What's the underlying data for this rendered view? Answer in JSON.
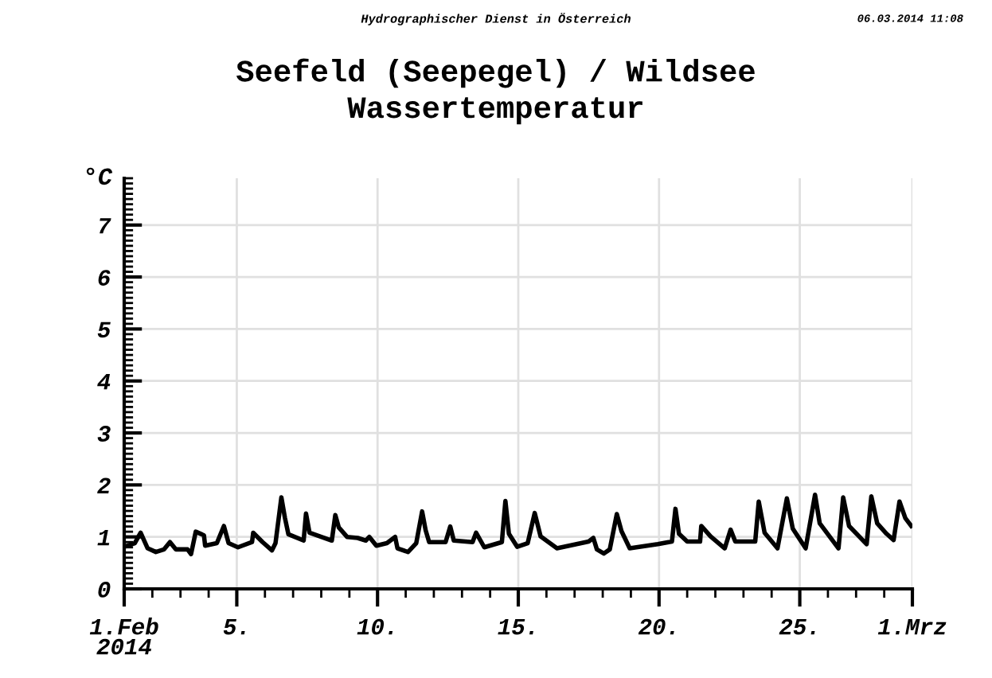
{
  "chart_data": {
    "type": "line",
    "title": "Seefeld (Seepegel) / Wildsee",
    "subtitle": "Wassertemperatur",
    "ylabel": "°C",
    "annotations": [
      "Hydrographischer Dienst in Österreich",
      "06.03.2014 11:08"
    ],
    "x": [
      "2014-02-01T00:00",
      "2014-02-01T09:00",
      "2014-02-01T14:00",
      "2014-02-01T20:00",
      "2014-02-02T03:00",
      "2014-02-02T10:00",
      "2014-02-02T15:00",
      "2014-02-02T20:00",
      "2014-02-03T06:00",
      "2014-02-03T09:00",
      "2014-02-03T13:00",
      "2014-02-03T20:00",
      "2014-02-03T21:00",
      "2014-02-04T07:00",
      "2014-02-04T13:00",
      "2014-02-04T17:00",
      "2014-02-05T01:00",
      "2014-02-05T13:00",
      "2014-02-05T14:00",
      "2014-02-05T22:00",
      "2014-02-06T06:00",
      "2014-02-06T09:00",
      "2014-02-06T14:00",
      "2014-02-06T17:00",
      "2014-02-06T20:00",
      "2014-02-07T09:00",
      "2014-02-07T11:00",
      "2014-02-07T14:00",
      "2014-02-08T09:00",
      "2014-02-08T12:00",
      "2014-02-08T15:00",
      "2014-02-08T22:00",
      "2014-02-09T07:00",
      "2014-02-09T14:00",
      "2014-02-09T17:00",
      "2014-02-09T23:00",
      "2014-02-10T08:00",
      "2014-02-10T15:00",
      "2014-02-10T17:00",
      "2014-02-11T02:00",
      "2014-02-11T09:00",
      "2014-02-11T14:00",
      "2014-02-11T17:00",
      "2014-02-11T20:00",
      "2014-02-12T10:00",
      "2014-02-12T14:00",
      "2014-02-12T17:00",
      "2014-02-13T09:00",
      "2014-02-13T12:00",
      "2014-02-13T19:00",
      "2014-02-14T10:00",
      "2014-02-14T13:00",
      "2014-02-14T16:00",
      "2014-02-14T23:00",
      "2014-02-15T08:00",
      "2014-02-15T14:00",
      "2014-02-15T19:00",
      "2014-02-16T09:00",
      "2014-02-17T12:00",
      "2014-02-17T16:00",
      "2014-02-17T19:00",
      "2014-02-18T01:00",
      "2014-02-18T06:00",
      "2014-02-18T12:00",
      "2014-02-18T16:00",
      "2014-02-18T23:00",
      "2014-02-19T23:00",
      "2014-02-20T11:00",
      "2014-02-20T14:00",
      "2014-02-20T17:00",
      "2014-02-21T00:00",
      "2014-02-21T11:00",
      "2014-02-21T12:00",
      "2014-02-21T20:00",
      "2014-02-22T08:00",
      "2014-02-22T13:00",
      "2014-02-22T17:00",
      "2014-02-23T10:00",
      "2014-02-23T13:00",
      "2014-02-23T18:00",
      "2014-02-24T05:00",
      "2014-02-24T13:00",
      "2014-02-24T18:00",
      "2014-02-25T05:00",
      "2014-02-25T13:00",
      "2014-02-25T17:00",
      "2014-02-26T09:00",
      "2014-02-26T13:00",
      "2014-02-26T18:00",
      "2014-02-27T09:00",
      "2014-02-27T13:00",
      "2014-02-27T18:00",
      "2014-02-28T02:00",
      "2014-02-28T08:00",
      "2014-02-28T13:00",
      "2014-02-28T18:00",
      "2014-02-28T23:00"
    ],
    "series": [
      {
        "color": "#000000",
        "values": [
          0.81,
          0.88,
          1.08,
          0.78,
          0.71,
          0.76,
          0.9,
          0.76,
          0.76,
          0.67,
          1.1,
          1.03,
          0.83,
          0.88,
          1.21,
          0.88,
          0.8,
          0.9,
          1.08,
          0.9,
          0.74,
          0.88,
          1.76,
          1.37,
          1.05,
          0.93,
          1.45,
          1.08,
          0.93,
          1.42,
          1.18,
          1.0,
          0.98,
          0.93,
          1.0,
          0.83,
          0.88,
          1.0,
          0.78,
          0.71,
          0.88,
          1.49,
          1.13,
          0.9,
          0.9,
          1.2,
          0.93,
          0.9,
          1.08,
          0.8,
          0.9,
          1.69,
          1.06,
          0.81,
          0.88,
          1.46,
          1.01,
          0.78,
          0.91,
          0.98,
          0.76,
          0.68,
          0.76,
          1.44,
          1.11,
          0.78,
          0.86,
          0.91,
          1.54,
          1.06,
          0.91,
          0.91,
          1.21,
          1.01,
          0.78,
          1.14,
          0.91,
          0.91,
          1.68,
          1.08,
          0.78,
          1.74,
          1.16,
          0.78,
          1.81,
          1.26,
          0.78,
          1.76,
          1.21,
          0.86,
          1.78,
          1.26,
          1.06,
          0.94,
          1.68,
          1.36,
          1.21
        ]
      }
    ],
    "xlim": [
      "2014-02-01",
      "2014-03-01"
    ],
    "xticks": [
      {
        "value": "2014-02-01",
        "label": "1.Feb\n2014"
      },
      {
        "value": "2014-02-05",
        "label": "5."
      },
      {
        "value": "2014-02-10",
        "label": "10."
      },
      {
        "value": "2014-02-15",
        "label": "15."
      },
      {
        "value": "2014-02-20",
        "label": "20."
      },
      {
        "value": "2014-02-25",
        "label": "25."
      },
      {
        "value": "2014-03-01",
        "label": "1.Mrz"
      }
    ],
    "ylim": [
      0,
      7.9
    ],
    "yticks": [
      0,
      1,
      2,
      3,
      4,
      5,
      6,
      7
    ],
    "grid": true,
    "line_style": "solid",
    "marker": "none"
  }
}
